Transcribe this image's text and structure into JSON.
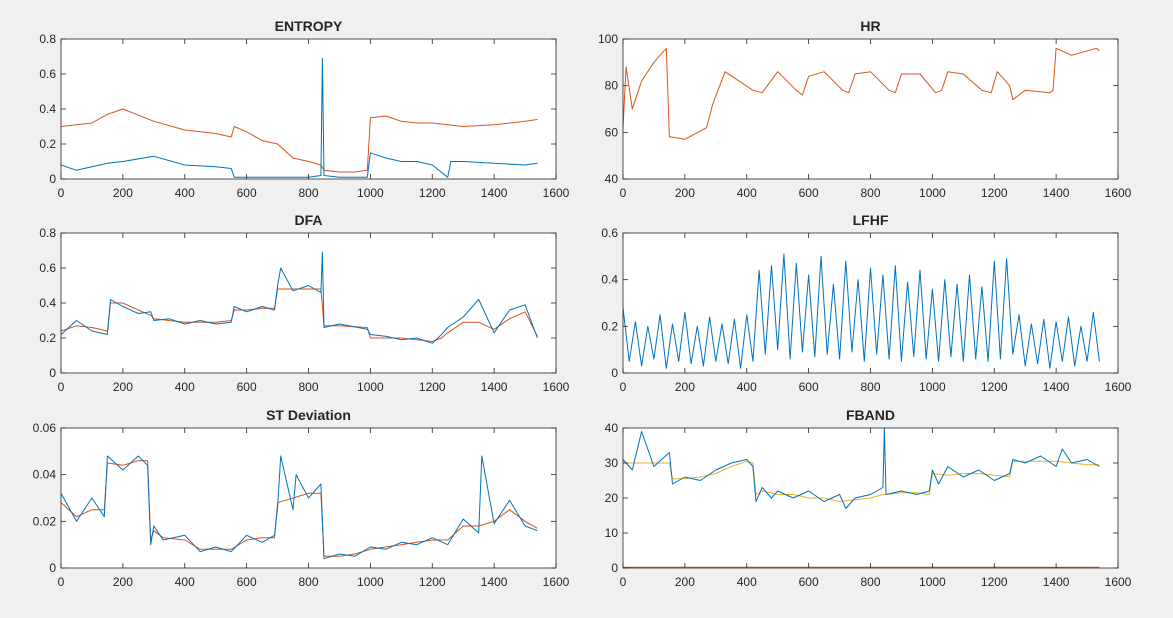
{
  "window": {
    "background": "#f0f0f0"
  },
  "chart_data": [
    {
      "type": "line",
      "title": "ENTROPY",
      "xlim": [
        0,
        1600
      ],
      "ylim": [
        0,
        0.8
      ],
      "xticks": [
        0,
        200,
        400,
        600,
        800,
        1000,
        1200,
        1400,
        1600
      ],
      "yticks": [
        0,
        0.2,
        0.4,
        0.6,
        0.8
      ],
      "ytick_labels": [
        "0",
        "0.2",
        "0.4",
        "0.6",
        "0.8"
      ],
      "grid": false,
      "series": [
        {
          "color": "#d95319",
          "x": [
            0,
            100,
            150,
            200,
            300,
            400,
            500,
            550,
            560,
            600,
            650,
            700,
            750,
            800,
            840,
            850,
            900,
            950,
            990,
            1000,
            1050,
            1100,
            1150,
            1200,
            1250,
            1300,
            1400,
            1500,
            1540
          ],
          "y": [
            0.3,
            0.32,
            0.37,
            0.4,
            0.33,
            0.28,
            0.26,
            0.24,
            0.3,
            0.27,
            0.22,
            0.2,
            0.12,
            0.1,
            0.08,
            0.05,
            0.04,
            0.04,
            0.05,
            0.35,
            0.36,
            0.33,
            0.32,
            0.32,
            0.31,
            0.3,
            0.31,
            0.33,
            0.34
          ]
        },
        {
          "color": "#0072bd",
          "x": [
            0,
            50,
            100,
            150,
            200,
            300,
            400,
            500,
            550,
            560,
            600,
            700,
            800,
            840,
            845,
            850,
            900,
            990,
            1000,
            1050,
            1100,
            1150,
            1200,
            1250,
            1260,
            1300,
            1400,
            1500,
            1540
          ],
          "y": [
            0.08,
            0.05,
            0.07,
            0.09,
            0.1,
            0.13,
            0.08,
            0.07,
            0.06,
            0.01,
            0.01,
            0.01,
            0.01,
            0.02,
            0.69,
            0.02,
            0.01,
            0.01,
            0.15,
            0.12,
            0.1,
            0.1,
            0.08,
            0.01,
            0.1,
            0.1,
            0.09,
            0.08,
            0.09
          ]
        }
      ]
    },
    {
      "type": "line",
      "title": "HR",
      "xlim": [
        0,
        1600
      ],
      "ylim": [
        40,
        100
      ],
      "xticks": [
        0,
        200,
        400,
        600,
        800,
        1000,
        1200,
        1400,
        1600
      ],
      "yticks": [
        40,
        60,
        80,
        100
      ],
      "ytick_labels": [
        "40",
        "60",
        "80",
        "100"
      ],
      "grid": false,
      "series": [
        {
          "color": "#d95319",
          "x": [
            0,
            10,
            30,
            60,
            100,
            140,
            150,
            155,
            200,
            270,
            290,
            330,
            420,
            450,
            500,
            560,
            580,
            600,
            650,
            710,
            730,
            750,
            800,
            860,
            880,
            900,
            960,
            1010,
            1030,
            1050,
            1100,
            1160,
            1190,
            1210,
            1250,
            1260,
            1300,
            1380,
            1390,
            1400,
            1450,
            1530,
            1540
          ],
          "y": [
            62,
            88,
            70,
            82,
            90,
            96,
            58,
            58,
            57,
            62,
            72,
            86,
            78,
            77,
            86,
            78,
            76,
            84,
            86,
            78,
            77,
            85,
            86,
            78,
            77,
            85,
            85,
            77,
            78,
            86,
            85,
            78,
            77,
            86,
            80,
            74,
            78,
            77,
            78,
            96,
            93,
            96,
            95
          ]
        }
      ]
    },
    {
      "type": "line",
      "title": "DFA",
      "xlim": [
        0,
        1600
      ],
      "ylim": [
        0,
        0.8
      ],
      "xticks": [
        0,
        200,
        400,
        600,
        800,
        1000,
        1200,
        1400,
        1600
      ],
      "yticks": [
        0,
        0.2,
        0.4,
        0.6,
        0.8
      ],
      "ytick_labels": [
        "0",
        "0.2",
        "0.4",
        "0.6",
        "0.8"
      ],
      "grid": false,
      "series": [
        {
          "color": "#d95319",
          "x": [
            0,
            50,
            100,
            150,
            160,
            200,
            250,
            290,
            300,
            350,
            400,
            450,
            500,
            550,
            560,
            600,
            650,
            690,
            700,
            750,
            800,
            840,
            850,
            900,
            990,
            1000,
            1050,
            1100,
            1150,
            1200,
            1230,
            1250,
            1300,
            1350,
            1400,
            1450,
            1500,
            1540
          ],
          "y": [
            0.24,
            0.27,
            0.26,
            0.24,
            0.4,
            0.4,
            0.36,
            0.33,
            0.31,
            0.3,
            0.29,
            0.29,
            0.29,
            0.3,
            0.36,
            0.36,
            0.37,
            0.37,
            0.48,
            0.48,
            0.48,
            0.48,
            0.27,
            0.27,
            0.26,
            0.2,
            0.2,
            0.2,
            0.19,
            0.18,
            0.2,
            0.23,
            0.29,
            0.29,
            0.25,
            0.31,
            0.35,
            0.21
          ]
        },
        {
          "color": "#0072bd",
          "x": [
            0,
            50,
            100,
            150,
            160,
            200,
            250,
            290,
            300,
            350,
            400,
            450,
            500,
            550,
            560,
            600,
            650,
            690,
            700,
            710,
            750,
            800,
            840,
            845,
            850,
            900,
            990,
            1000,
            1050,
            1100,
            1150,
            1200,
            1230,
            1250,
            1300,
            1350,
            1400,
            1450,
            1500,
            1540
          ],
          "y": [
            0.22,
            0.3,
            0.24,
            0.22,
            0.42,
            0.38,
            0.34,
            0.35,
            0.3,
            0.31,
            0.28,
            0.3,
            0.28,
            0.29,
            0.38,
            0.35,
            0.38,
            0.36,
            0.5,
            0.6,
            0.47,
            0.5,
            0.46,
            0.69,
            0.26,
            0.28,
            0.25,
            0.22,
            0.21,
            0.19,
            0.2,
            0.17,
            0.22,
            0.26,
            0.32,
            0.42,
            0.23,
            0.36,
            0.39,
            0.2
          ]
        }
      ]
    },
    {
      "type": "line",
      "title": "LFHF",
      "xlim": [
        0,
        1600
      ],
      "ylim": [
        0,
        0.6
      ],
      "xticks": [
        0,
        200,
        400,
        600,
        800,
        1000,
        1200,
        1400,
        1600
      ],
      "yticks": [
        0,
        0.2,
        0.4,
        0.6
      ],
      "ytick_labels": [
        "0",
        "0.2",
        "0.4",
        "0.6"
      ],
      "grid": false,
      "series": [
        {
          "color": "#0072bd",
          "x": [
            0,
            20,
            40,
            60,
            80,
            100,
            120,
            140,
            160,
            180,
            200,
            220,
            240,
            260,
            280,
            300,
            320,
            340,
            360,
            380,
            400,
            420,
            440,
            460,
            480,
            500,
            520,
            540,
            560,
            580,
            600,
            620,
            640,
            660,
            680,
            700,
            720,
            740,
            760,
            780,
            800,
            820,
            840,
            860,
            880,
            900,
            920,
            940,
            960,
            980,
            1000,
            1020,
            1040,
            1060,
            1080,
            1100,
            1120,
            1140,
            1160,
            1180,
            1200,
            1220,
            1240,
            1260,
            1280,
            1300,
            1320,
            1340,
            1360,
            1380,
            1400,
            1420,
            1440,
            1460,
            1480,
            1500,
            1520,
            1540
          ],
          "y": [
            0.28,
            0.05,
            0.22,
            0.03,
            0.2,
            0.06,
            0.25,
            0.02,
            0.21,
            0.05,
            0.26,
            0.04,
            0.2,
            0.03,
            0.24,
            0.05,
            0.21,
            0.04,
            0.23,
            0.02,
            0.25,
            0.05,
            0.44,
            0.08,
            0.46,
            0.1,
            0.51,
            0.06,
            0.47,
            0.09,
            0.42,
            0.07,
            0.5,
            0.08,
            0.38,
            0.06,
            0.48,
            0.09,
            0.4,
            0.05,
            0.45,
            0.08,
            0.42,
            0.06,
            0.46,
            0.05,
            0.39,
            0.07,
            0.44,
            0.06,
            0.36,
            0.05,
            0.4,
            0.07,
            0.38,
            0.05,
            0.42,
            0.06,
            0.37,
            0.05,
            0.48,
            0.06,
            0.49,
            0.08,
            0.25,
            0.03,
            0.21,
            0.04,
            0.23,
            0.02,
            0.22,
            0.05,
            0.24,
            0.03,
            0.2,
            0.05,
            0.26,
            0.05
          ]
        }
      ]
    },
    {
      "type": "line",
      "title": "ST Deviation",
      "xlim": [
        0,
        1600
      ],
      "ylim": [
        0,
        0.06
      ],
      "xticks": [
        0,
        200,
        400,
        600,
        800,
        1000,
        1200,
        1400,
        1600
      ],
      "yticks": [
        0,
        0.02,
        0.04,
        0.06
      ],
      "ytick_labels": [
        "0",
        "0.02",
        "0.04",
        "0.06"
      ],
      "grid": false,
      "series": [
        {
          "color": "#d95319",
          "x": [
            0,
            50,
            100,
            140,
            150,
            200,
            250,
            280,
            290,
            300,
            330,
            400,
            450,
            500,
            550,
            600,
            650,
            690,
            700,
            750,
            800,
            840,
            850,
            900,
            950,
            1000,
            1050,
            1100,
            1150,
            1200,
            1250,
            1300,
            1350,
            1400,
            1450,
            1500,
            1540
          ],
          "y": [
            0.028,
            0.022,
            0.025,
            0.025,
            0.045,
            0.044,
            0.046,
            0.046,
            0.012,
            0.016,
            0.013,
            0.012,
            0.008,
            0.008,
            0.008,
            0.012,
            0.013,
            0.013,
            0.028,
            0.03,
            0.032,
            0.032,
            0.005,
            0.005,
            0.006,
            0.008,
            0.009,
            0.01,
            0.011,
            0.012,
            0.012,
            0.018,
            0.018,
            0.02,
            0.025,
            0.02,
            0.017
          ]
        },
        {
          "color": "#0072bd",
          "x": [
            0,
            50,
            100,
            140,
            150,
            200,
            250,
            280,
            290,
            300,
            330,
            400,
            450,
            500,
            550,
            600,
            650,
            690,
            700,
            710,
            750,
            760,
            800,
            840,
            850,
            900,
            950,
            1000,
            1050,
            1100,
            1150,
            1200,
            1250,
            1300,
            1350,
            1360,
            1400,
            1450,
            1500,
            1540
          ],
          "y": [
            0.032,
            0.02,
            0.03,
            0.022,
            0.048,
            0.042,
            0.048,
            0.044,
            0.01,
            0.018,
            0.012,
            0.014,
            0.007,
            0.009,
            0.007,
            0.014,
            0.011,
            0.014,
            0.026,
            0.048,
            0.025,
            0.04,
            0.03,
            0.036,
            0.004,
            0.006,
            0.005,
            0.009,
            0.008,
            0.011,
            0.01,
            0.013,
            0.01,
            0.021,
            0.015,
            0.048,
            0.019,
            0.029,
            0.018,
            0.016
          ]
        }
      ]
    },
    {
      "type": "line",
      "title": "FBAND",
      "xlim": [
        0,
        1600
      ],
      "ylim": [
        0,
        40
      ],
      "xticks": [
        0,
        200,
        400,
        600,
        800,
        1000,
        1200,
        1400,
        1600
      ],
      "yticks": [
        0,
        10,
        20,
        30,
        40
      ],
      "ytick_labels": [
        "0",
        "10",
        "20",
        "30",
        "40"
      ],
      "grid": false,
      "series": [
        {
          "color": "#d95319",
          "x": [
            0,
            1540
          ],
          "y": [
            0.2,
            0.2
          ]
        },
        {
          "color": "#edb120",
          "x": [
            0,
            50,
            100,
            150,
            160,
            200,
            250,
            300,
            350,
            400,
            420,
            430,
            450,
            500,
            550,
            600,
            650,
            700,
            750,
            800,
            840,
            850,
            900,
            950,
            990,
            1000,
            1050,
            1100,
            1150,
            1200,
            1250,
            1260,
            1300,
            1350,
            1400,
            1450,
            1500,
            1540
          ],
          "y": [
            30,
            30,
            30,
            30,
            25.5,
            25.5,
            26,
            27,
            29,
            30.5,
            30,
            21,
            22,
            21,
            21,
            20,
            20,
            19,
            19.5,
            20,
            21,
            21,
            21.5,
            21.5,
            21,
            27,
            26.5,
            27,
            27,
            26.5,
            26,
            30.5,
            30.5,
            30.5,
            30.5,
            30,
            29.5,
            29.5
          ]
        },
        {
          "color": "#0072bd",
          "x": [
            0,
            30,
            60,
            100,
            150,
            160,
            200,
            250,
            300,
            350,
            400,
            420,
            430,
            450,
            480,
            500,
            550,
            600,
            650,
            700,
            720,
            750,
            800,
            840,
            845,
            850,
            900,
            950,
            990,
            1000,
            1020,
            1050,
            1100,
            1150,
            1200,
            1250,
            1260,
            1300,
            1350,
            1400,
            1420,
            1450,
            1500,
            1540
          ],
          "y": [
            31,
            28,
            39,
            29,
            33,
            24,
            26,
            25,
            28,
            30,
            31,
            29,
            19,
            23,
            20,
            22,
            20,
            22,
            19,
            21,
            17,
            20,
            21,
            23,
            40,
            21,
            22,
            21,
            22,
            28,
            24,
            29,
            26,
            28,
            25,
            27,
            31,
            30,
            32,
            29,
            34,
            30,
            31,
            29
          ]
        }
      ]
    }
  ]
}
